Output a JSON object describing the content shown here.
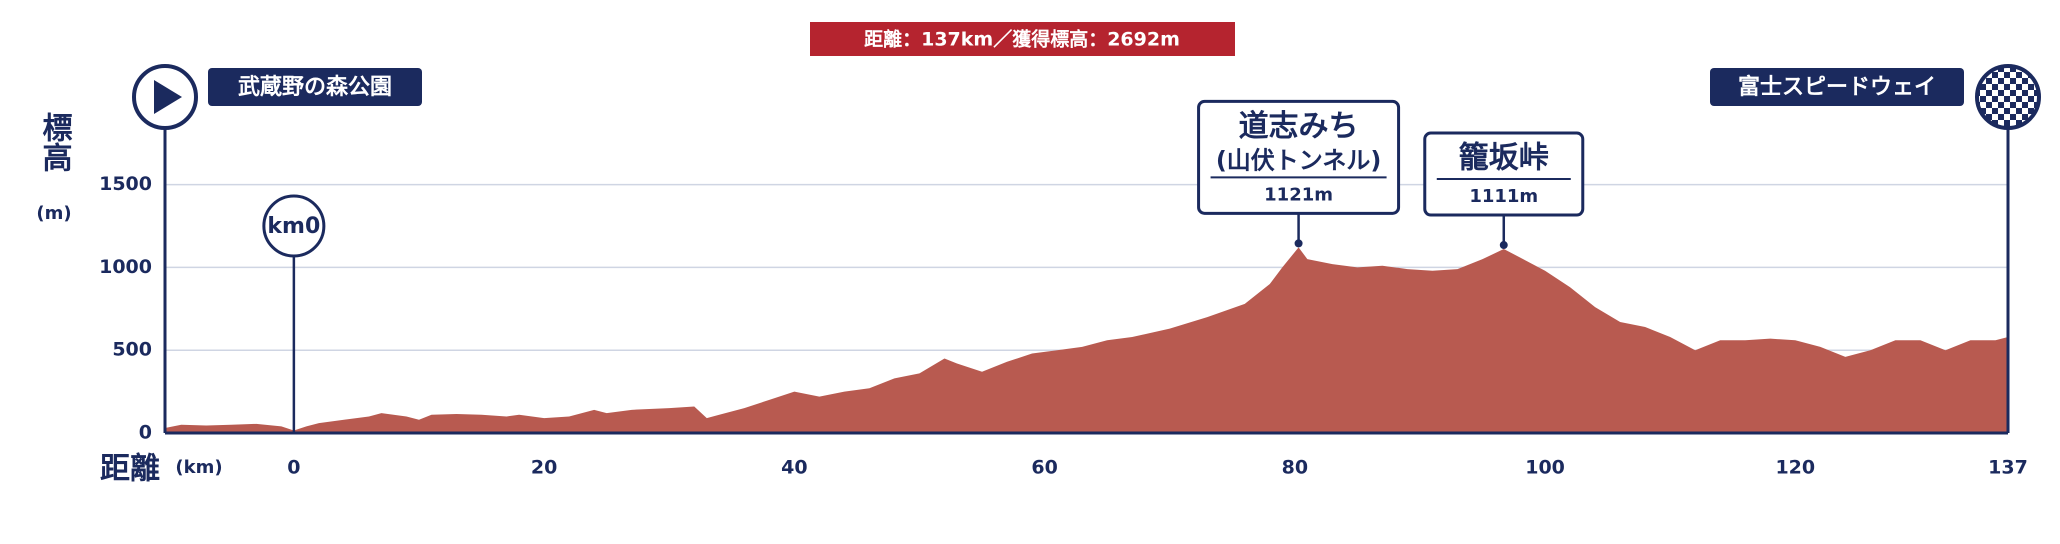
{
  "chart_data": {
    "type": "area",
    "title": "距離：137km／獲得標高：2692m",
    "y_label": "標高",
    "y_unit": "(m)",
    "x_label": "距離",
    "x_unit": "(km)",
    "start": "武蔵野の森公園",
    "finish": "富士スピードウェイ",
    "km0_marker": {
      "label": "km0",
      "x": 0
    },
    "color": "#b85a50",
    "xlim": [
      -10.3,
      137
    ],
    "ylim": [
      0,
      1860
    ],
    "xticks": [
      0,
      20,
      40,
      60,
      80,
      100,
      120,
      137
    ],
    "yticks": [
      0,
      500,
      1000,
      1500
    ],
    "grid": true,
    "x": [
      -10.3,
      -9,
      -7,
      -5,
      -3,
      -1,
      0,
      1,
      2,
      4,
      6,
      7,
      9,
      10,
      11,
      13,
      15,
      17,
      18,
      20,
      22,
      24,
      25,
      27,
      30,
      32,
      33,
      34,
      36,
      38,
      40,
      42,
      44,
      46,
      48,
      50,
      52,
      53,
      55,
      57,
      59,
      61,
      63,
      65,
      67,
      70,
      73,
      76,
      78,
      79,
      80.3,
      81,
      83,
      85,
      87,
      89,
      91,
      93,
      95,
      96.7,
      98,
      100,
      102,
      104,
      106,
      108,
      110,
      112,
      114,
      116,
      118,
      120,
      122,
      124,
      126,
      128,
      130,
      132,
      134,
      136,
      137
    ],
    "values": [
      30,
      50,
      45,
      50,
      55,
      40,
      15,
      40,
      60,
      80,
      100,
      120,
      100,
      80,
      110,
      115,
      110,
      100,
      110,
      90,
      100,
      140,
      120,
      140,
      150,
      160,
      90,
      110,
      150,
      200,
      250,
      220,
      250,
      270,
      330,
      360,
      450,
      420,
      370,
      430,
      480,
      500,
      520,
      560,
      580,
      630,
      700,
      780,
      900,
      1000,
      1121,
      1050,
      1020,
      1000,
      1010,
      990,
      980,
      990,
      1050,
      1111,
      1060,
      980,
      880,
      760,
      670,
      640,
      580,
      500,
      560,
      560,
      570,
      560,
      520,
      460,
      500,
      560,
      560,
      500,
      560,
      560,
      580
    ],
    "annotations": [
      {
        "name": "道志みち",
        "note": "(山伏トンネル)",
        "x": 80.3,
        "value": 1121,
        "label": "1121m"
      },
      {
        "name": "籠坂峠",
        "x": 96.7,
        "value": 1111,
        "label": "1111m"
      }
    ]
  }
}
